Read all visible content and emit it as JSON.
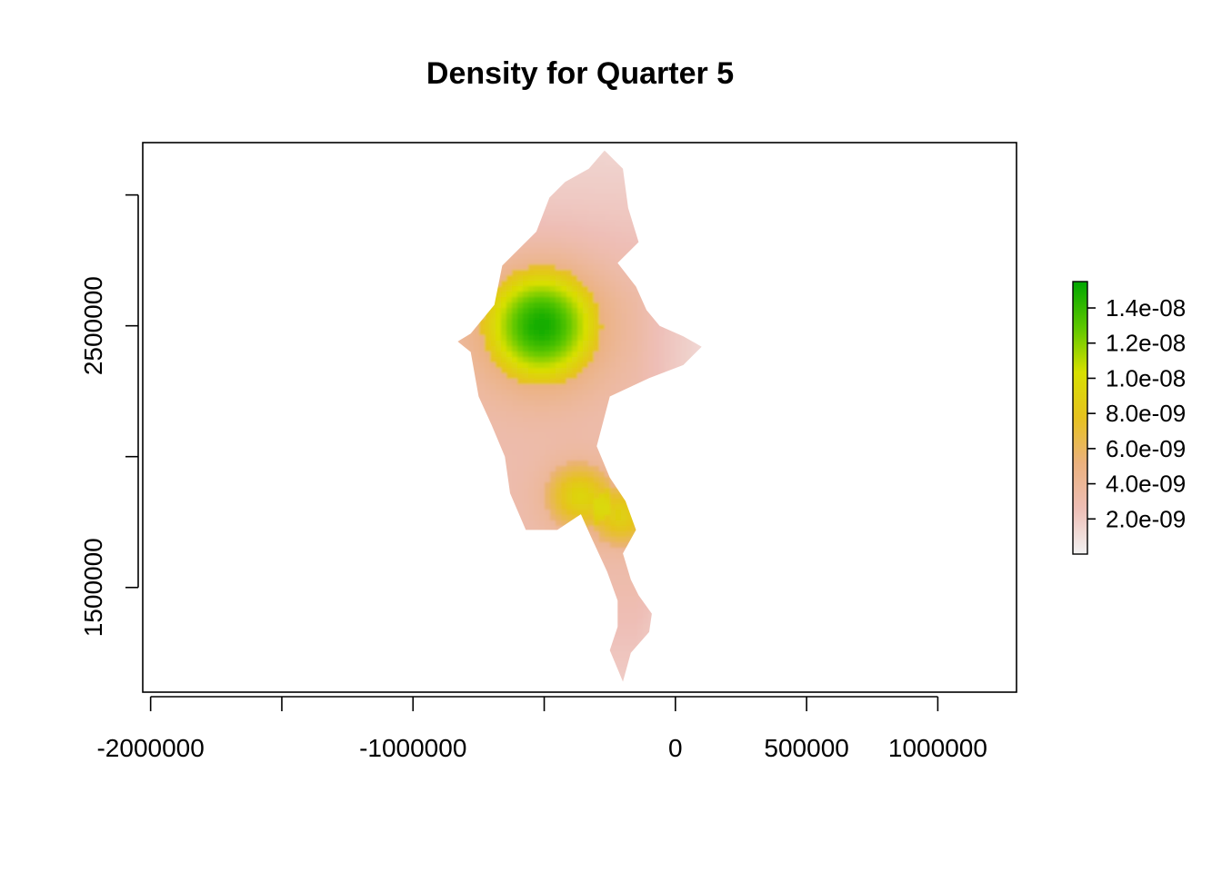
{
  "chart_data": {
    "type": "heatmap",
    "title": "Density for Quarter 5",
    "xlabel": "",
    "ylabel": "",
    "xlim": [
      -2030000,
      1300000
    ],
    "ylim": [
      1100000,
      3200000
    ],
    "x_ticks": [
      -2000000,
      -1500000,
      -1000000,
      -500000,
      0,
      500000,
      1000000
    ],
    "x_tick_labels": [
      "-2000000",
      "",
      "-1000000",
      "",
      "0",
      "500000",
      "1000000"
    ],
    "y_ticks": [
      1500000,
      2000000,
      2500000,
      3000000
    ],
    "y_tick_labels": [
      "1500000",
      "",
      "2500000",
      ""
    ],
    "legend": {
      "position": "right",
      "range": [
        0,
        1.55e-08
      ],
      "ticks": [
        2e-09,
        4e-09,
        6e-09,
        8e-09,
        1e-08,
        1.2e-08,
        1.4e-08
      ],
      "tick_labels": [
        "2.0e-09",
        "4.0e-09",
        "6.0e-09",
        "8.0e-09",
        "1.0e-08",
        "1.2e-08",
        "1.4e-08"
      ],
      "colors": [
        "#F2F2F2",
        "#EEBEB6",
        "#EBB17E",
        "#E6C21F",
        "#D7E000",
        "#5DC700",
        "#00A600"
      ]
    },
    "hotspots": [
      {
        "x": -510000,
        "y": 2500000,
        "peak": 1.5e-08
      },
      {
        "x": -370000,
        "y": 1850000,
        "peak": 9e-09
      },
      {
        "x": -200000,
        "y": 1770000,
        "peak": 8.5e-09
      }
    ],
    "background_density": 3e-09,
    "region_outline": [
      [
        -270000,
        3170000
      ],
      [
        -200000,
        3100000
      ],
      [
        -180000,
        2950000
      ],
      [
        -140000,
        2820000
      ],
      [
        -220000,
        2740000
      ],
      [
        -150000,
        2650000
      ],
      [
        -110000,
        2560000
      ],
      [
        -60000,
        2500000
      ],
      [
        30000,
        2460000
      ],
      [
        100000,
        2420000
      ],
      [
        30000,
        2350000
      ],
      [
        -100000,
        2300000
      ],
      [
        -250000,
        2230000
      ],
      [
        -300000,
        2040000
      ],
      [
        -250000,
        1920000
      ],
      [
        -190000,
        1830000
      ],
      [
        -150000,
        1720000
      ],
      [
        -200000,
        1630000
      ],
      [
        -170000,
        1530000
      ],
      [
        -140000,
        1470000
      ],
      [
        -90000,
        1400000
      ],
      [
        -100000,
        1330000
      ],
      [
        -170000,
        1250000
      ],
      [
        -200000,
        1140000
      ],
      [
        -250000,
        1260000
      ],
      [
        -220000,
        1350000
      ],
      [
        -220000,
        1450000
      ],
      [
        -260000,
        1560000
      ],
      [
        -320000,
        1690000
      ],
      [
        -360000,
        1780000
      ],
      [
        -450000,
        1720000
      ],
      [
        -570000,
        1720000
      ],
      [
        -630000,
        1860000
      ],
      [
        -650000,
        2000000
      ],
      [
        -700000,
        2120000
      ],
      [
        -750000,
        2230000
      ],
      [
        -780000,
        2400000
      ],
      [
        -830000,
        2440000
      ],
      [
        -780000,
        2470000
      ],
      [
        -690000,
        2580000
      ],
      [
        -660000,
        2730000
      ],
      [
        -610000,
        2780000
      ],
      [
        -530000,
        2860000
      ],
      [
        -480000,
        2990000
      ],
      [
        -420000,
        3050000
      ],
      [
        -330000,
        3100000
      ]
    ]
  }
}
